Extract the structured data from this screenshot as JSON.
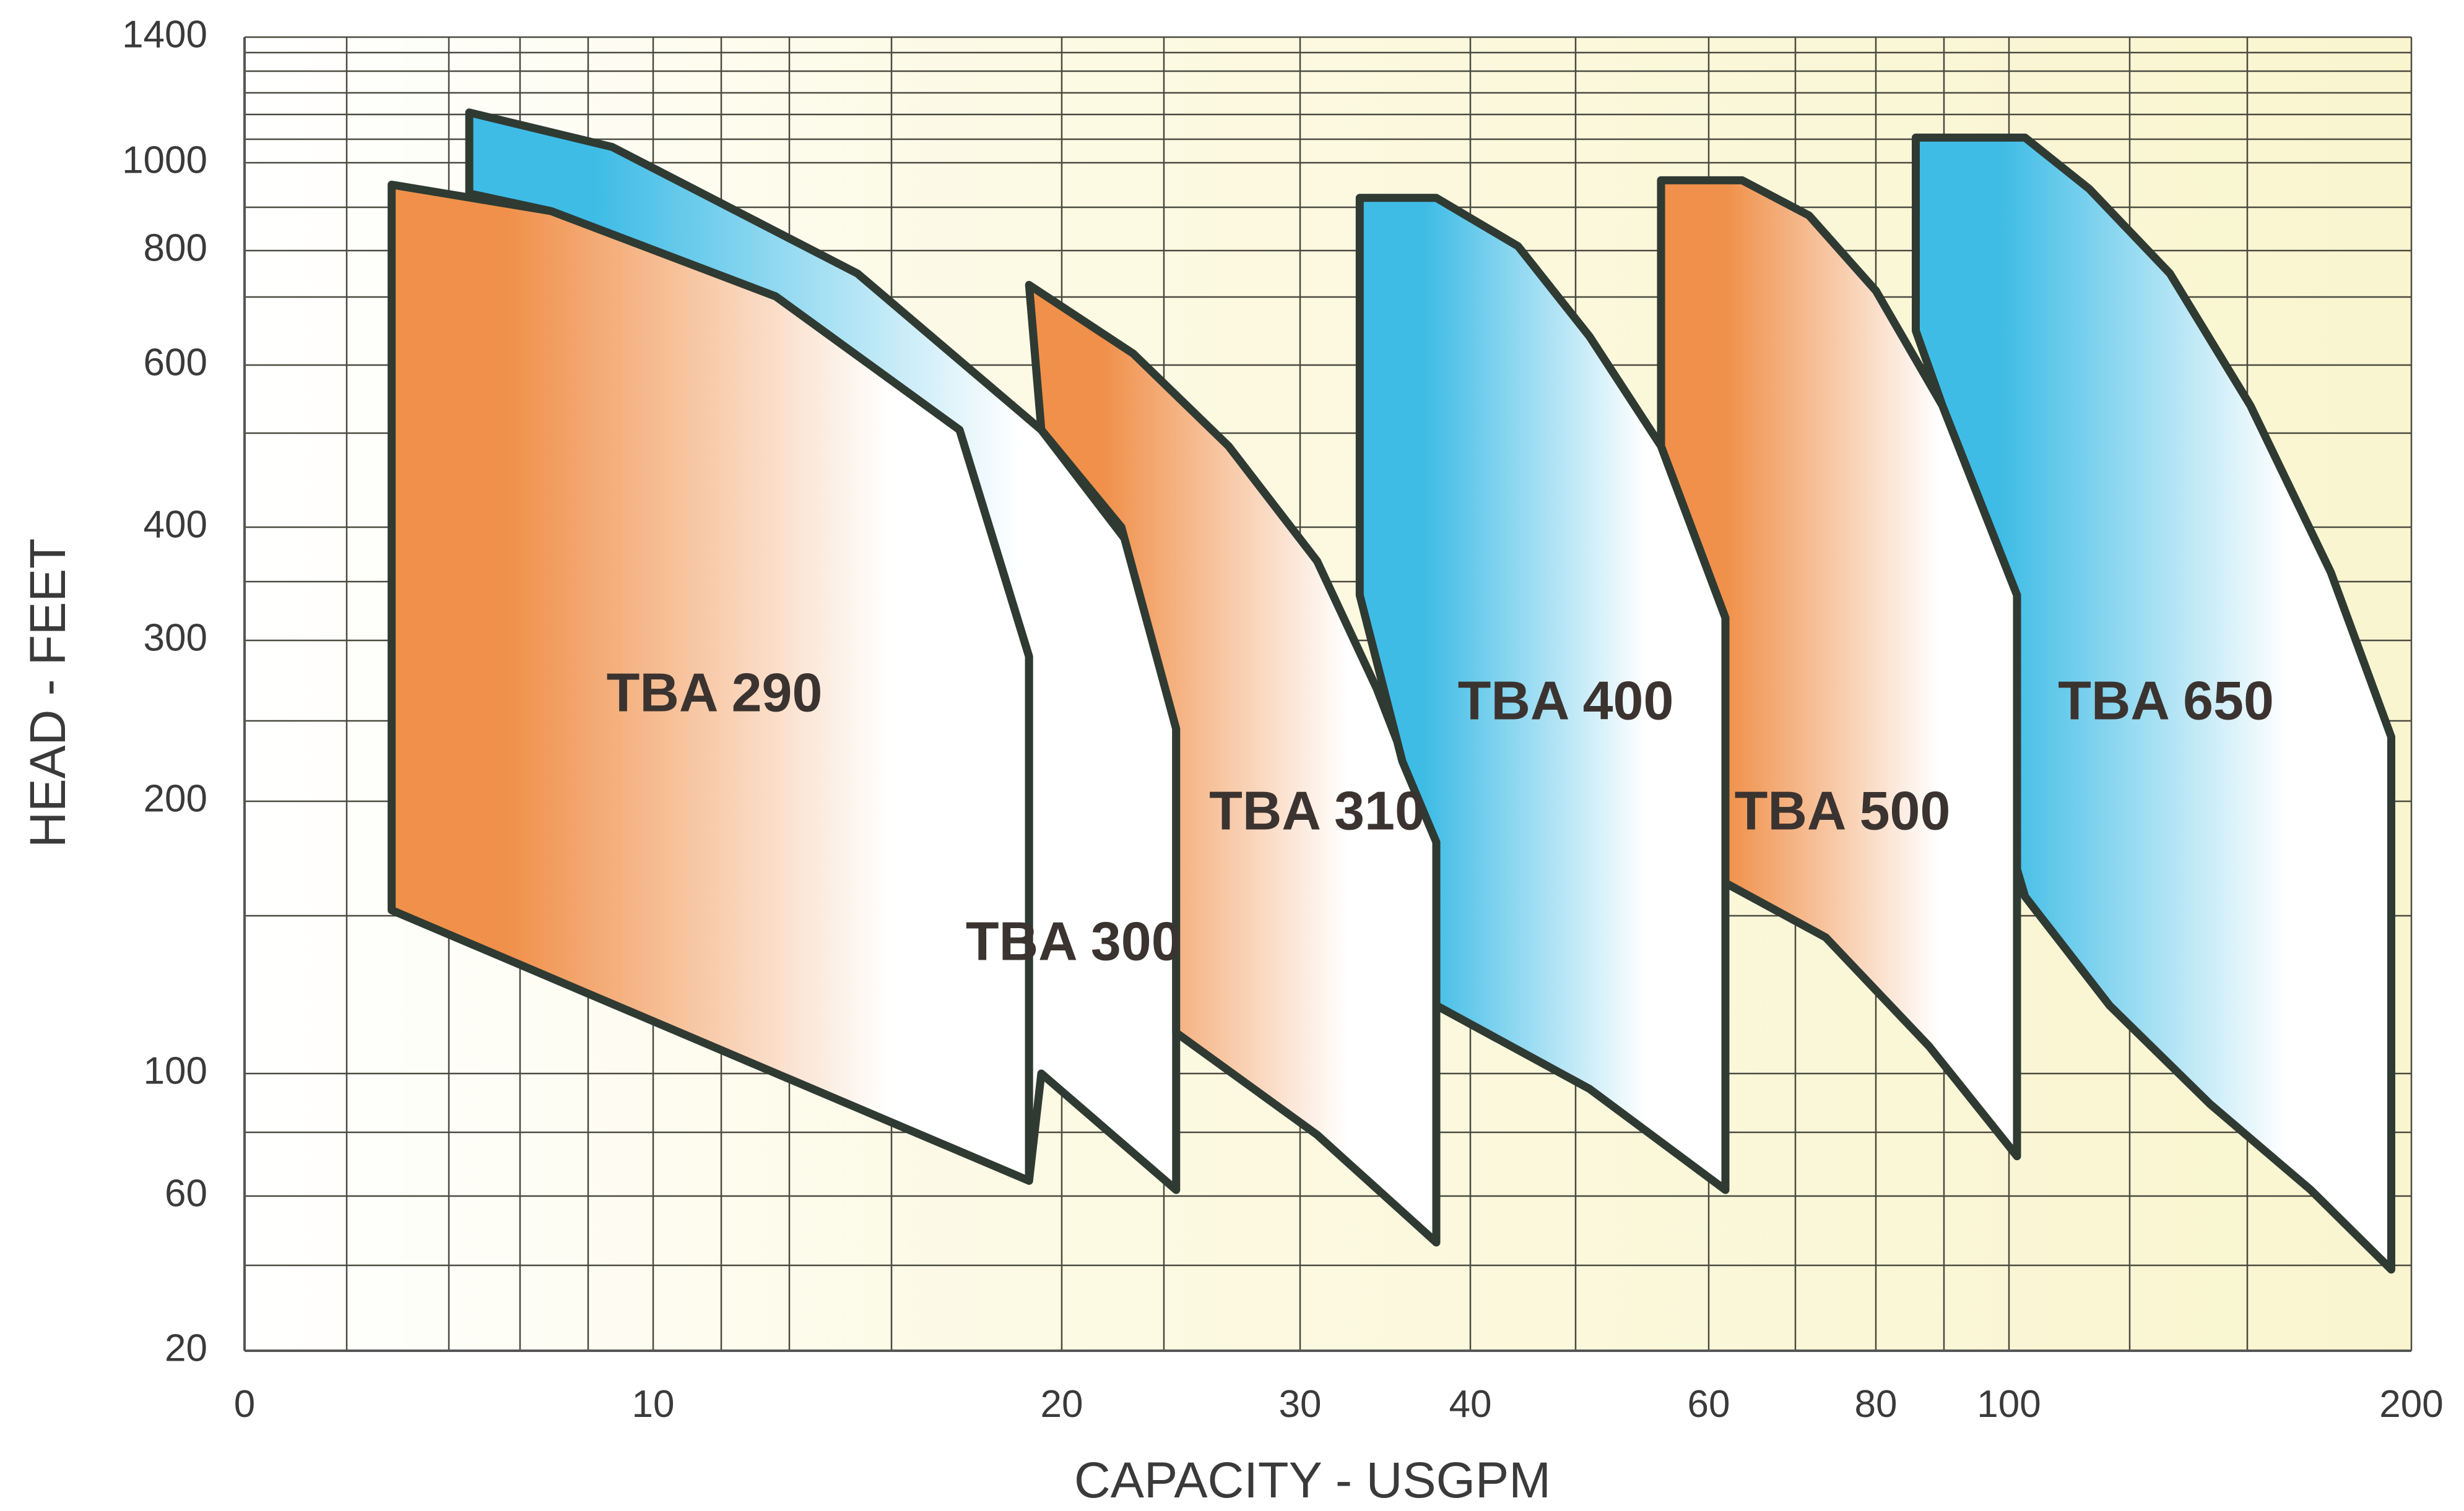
{
  "chart_data": {
    "type": "area",
    "xlabel": "CAPACITY - USGPM",
    "ylabel": "HEAD - FEET",
    "x_ticks": [
      "0",
      "10",
      "20",
      "30",
      "40",
      "60",
      "80",
      "100",
      "200"
    ],
    "y_ticks": [
      "1400",
      "1000",
      "800",
      "600",
      "400",
      "300",
      "200",
      "100",
      "60",
      "20"
    ],
    "grid": true,
    "colors": {
      "background": "#f9f5cf",
      "grid": "#4a4a40",
      "orange": "#f0904a",
      "blue": "#3fbce6",
      "outline": "#2f3a33"
    },
    "series": [
      {
        "name": "TBA 290",
        "color": "orange",
        "outline": [
          [
            3.6,
            160
          ],
          [
            3.6,
            950
          ],
          [
            7.5,
            890
          ],
          [
            13,
            720
          ],
          [
            17.5,
            520
          ],
          [
            19.2,
            290
          ],
          [
            19.2,
            65
          ],
          [
            3.6,
            160
          ]
        ]
      },
      {
        "name": "TBA 300",
        "color": "blue",
        "outline": [
          [
            5.5,
            1160
          ],
          [
            9,
            1050
          ],
          [
            15,
            760
          ],
          [
            19.5,
            520
          ],
          [
            23,
            380
          ],
          [
            24.8,
            245
          ],
          [
            24.8,
            62
          ],
          [
            19.5,
            100
          ],
          [
            19.2,
            65
          ],
          [
            19.2,
            290
          ],
          [
            17.5,
            520
          ],
          [
            13,
            720
          ],
          [
            7.5,
            890
          ],
          [
            5.5,
            930
          ],
          [
            5.5,
            1160
          ]
        ]
      },
      {
        "name": "TBA 310",
        "color": "orange",
        "outline": [
          [
            19.2,
            740
          ],
          [
            23,
            620
          ],
          [
            27,
            500
          ],
          [
            31,
            370
          ],
          [
            34.5,
            270
          ],
          [
            38,
            185
          ],
          [
            38,
            48
          ],
          [
            31,
            80
          ],
          [
            24.8,
            115
          ],
          [
            24.8,
            245
          ],
          [
            22.5,
            400
          ],
          [
            19.5,
            520
          ],
          [
            19.2,
            740
          ]
        ]
      },
      {
        "name": "TBA 400",
        "color": "blue",
        "outline": [
          [
            33.5,
            920
          ],
          [
            38,
            920
          ],
          [
            44,
            810
          ],
          [
            50,
            650
          ],
          [
            56,
            500
          ],
          [
            62,
            320
          ],
          [
            62,
            62
          ],
          [
            50,
            95
          ],
          [
            38,
            125
          ],
          [
            38,
            185
          ],
          [
            36,
            225
          ],
          [
            33.5,
            340
          ],
          [
            33.5,
            920
          ]
        ]
      },
      {
        "name": "TBA 500",
        "color": "orange",
        "outline": [
          [
            56,
            960
          ],
          [
            64,
            960
          ],
          [
            72,
            880
          ],
          [
            80,
            730
          ],
          [
            90,
            550
          ],
          [
            102,
            340
          ],
          [
            102,
            73
          ],
          [
            88,
            110
          ],
          [
            74,
            150
          ],
          [
            62,
            170
          ],
          [
            62,
            320
          ],
          [
            56,
            500
          ],
          [
            56,
            960
          ]
        ]
      },
      {
        "name": "TBA 650",
        "color": "blue",
        "outline": [
          [
            86,
            1080
          ],
          [
            104,
            1080
          ],
          [
            120,
            940
          ],
          [
            140,
            760
          ],
          [
            160,
            550
          ],
          [
            180,
            360
          ],
          [
            195,
            240
          ],
          [
            195,
            41
          ],
          [
            175,
            62
          ],
          [
            150,
            90
          ],
          [
            125,
            125
          ],
          [
            104,
            165
          ],
          [
            102,
            175
          ],
          [
            102,
            340
          ],
          [
            90,
            550
          ],
          [
            86,
            660
          ],
          [
            86,
            1080
          ]
        ]
      }
    ],
    "labels": [
      {
        "text": "TBA 290",
        "x": 11.5,
        "y": 265
      },
      {
        "text": "TBA 300",
        "x": 20.5,
        "y": 147
      },
      {
        "text": "TBA 310",
        "x": 31,
        "y": 195
      },
      {
        "text": "TBA 400",
        "x": 48,
        "y": 260
      },
      {
        "text": "TBA 500",
        "x": 76,
        "y": 195
      },
      {
        "text": "TBA 650",
        "x": 139,
        "y": 260
      }
    ]
  }
}
